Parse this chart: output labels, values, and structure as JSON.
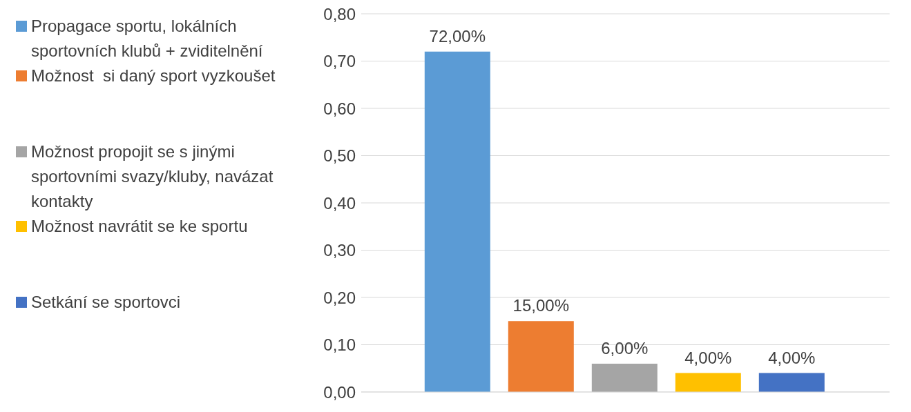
{
  "chart_data": {
    "type": "bar",
    "categories": [
      null
    ],
    "series": [
      {
        "name": "Propagace sportu, lokálních sportovních klubů + zviditelnění",
        "color": "#5b9bd5",
        "values": [
          0.72
        ],
        "value_labels": [
          "72,00%"
        ]
      },
      {
        "name": "Možnost  si daný sport vyzkoušet",
        "color": "#ed7d31",
        "values": [
          0.15
        ],
        "value_labels": [
          "15,00%"
        ]
      },
      {
        "name": "Možnost propojit se s jinými sportovními svazy/kluby, navázat kontakty",
        "color": "#a5a5a5",
        "values": [
          0.06
        ],
        "value_labels": [
          "6,00%"
        ]
      },
      {
        "name": "Možnost navrátit se ke sportu",
        "color": "#ffc000",
        "values": [
          0.04
        ],
        "value_labels": [
          "4,00%"
        ]
      },
      {
        "name": "Setkání se sportovci",
        "color": "#4472c4",
        "values": [
          0.04
        ],
        "value_labels": [
          "4,00%"
        ]
      }
    ],
    "ylim": [
      0,
      0.8
    ],
    "yticks": [
      {
        "value": 0,
        "label": "0,00"
      },
      {
        "value": 0.1,
        "label": "0,10"
      },
      {
        "value": 0.2,
        "label": "0,20"
      },
      {
        "value": 0.3,
        "label": "0,30"
      },
      {
        "value": 0.4,
        "label": "0,40"
      },
      {
        "value": 0.5,
        "label": "0,50"
      },
      {
        "value": 0.6,
        "label": "0,60"
      },
      {
        "value": 0.7,
        "label": "0,70"
      },
      {
        "value": 0.8,
        "label": "0,80"
      }
    ],
    "grid": "y",
    "legend": "left"
  }
}
